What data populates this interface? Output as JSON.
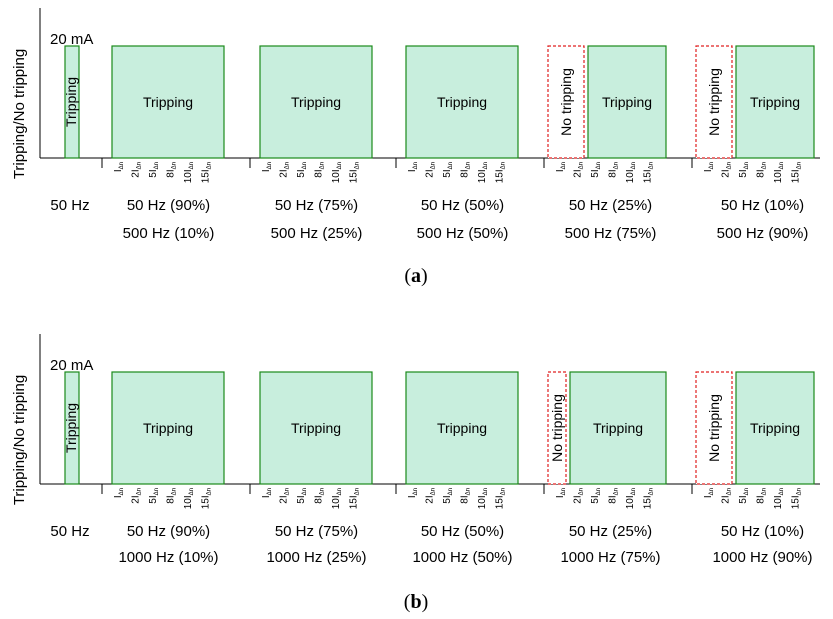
{
  "chart_data": [
    {
      "type": "bar",
      "panel_label": "a",
      "ylabel": "Tripping/No tripping",
      "level_label": "20 mA",
      "reference": {
        "category": "50 Hz",
        "result": "Tripping"
      },
      "groups": [
        {
          "line1": "50 Hz (90%)",
          "line2": "500 Hz (10%)",
          "no_tripping_levels": [],
          "tripping_levels": [
            "I",
            "2I",
            "5I",
            "8I",
            "10I",
            "15I"
          ]
        },
        {
          "line1": "50 Hz (75%)",
          "line2": "500 Hz (25%)",
          "no_tripping_levels": [],
          "tripping_levels": [
            "I",
            "2I",
            "5I",
            "8I",
            "10I",
            "15I"
          ]
        },
        {
          "line1": "50 Hz (50%)",
          "line2": "500 Hz (50%)",
          "no_tripping_levels": [],
          "tripping_levels": [
            "I",
            "2I",
            "5I",
            "8I",
            "10I",
            "15I"
          ]
        },
        {
          "line1": "50 Hz (25%)",
          "line2": "500 Hz (75%)",
          "no_tripping_levels": [
            "I",
            "2I"
          ],
          "tripping_levels": [
            "5I",
            "8I",
            "10I",
            "15I"
          ]
        },
        {
          "line1": "50 Hz (10%)",
          "line2": "500 Hz (90%)",
          "no_tripping_levels": [
            "I",
            "2I"
          ],
          "tripping_levels": [
            "5I",
            "8I",
            "10I",
            "15I"
          ]
        }
      ]
    },
    {
      "type": "bar",
      "panel_label": "b",
      "ylabel": "Tripping/No tripping",
      "level_label": "20 mA",
      "reference": {
        "category": "50 Hz",
        "result": "Tripping"
      },
      "groups": [
        {
          "line1": "50 Hz (90%)",
          "line2": "1000 Hz (10%)",
          "no_tripping_levels": [],
          "tripping_levels": [
            "I",
            "2I",
            "5I",
            "8I",
            "10I",
            "15I"
          ]
        },
        {
          "line1": "50 Hz (75%)",
          "line2": "1000 Hz (25%)",
          "no_tripping_levels": [],
          "tripping_levels": [
            "I",
            "2I",
            "5I",
            "8I",
            "10I",
            "15I"
          ]
        },
        {
          "line1": "50 Hz (50%)",
          "line2": "1000 Hz (50%)",
          "no_tripping_levels": [],
          "tripping_levels": [
            "I",
            "2I",
            "5I",
            "8I",
            "10I",
            "15I"
          ]
        },
        {
          "line1": "50 Hz (25%)",
          "line2": "1000 Hz (75%)",
          "no_tripping_levels": [
            "I"
          ],
          "tripping_levels": [
            "2I",
            "5I",
            "8I",
            "10I",
            "15I"
          ]
        },
        {
          "line1": "50 Hz (10%)",
          "line2": "1000 Hz (90%)",
          "no_tripping_levels": [
            "I",
            "2I"
          ],
          "tripping_levels": [
            "5I",
            "8I",
            "10I",
            "15I"
          ]
        }
      ]
    }
  ],
  "labels": {
    "tripping": "Tripping",
    "no_tripping": "No tripping",
    "ticks": [
      "I",
      "2I",
      "5I",
      "8I",
      "10I",
      "15I"
    ],
    "tick_subscript": "Δn"
  },
  "colors": {
    "tripping_fill": "#c8eedd",
    "tripping_stroke": "#1a8a1a",
    "no_tripping_stroke": "#e02020",
    "axis": "#000000"
  }
}
